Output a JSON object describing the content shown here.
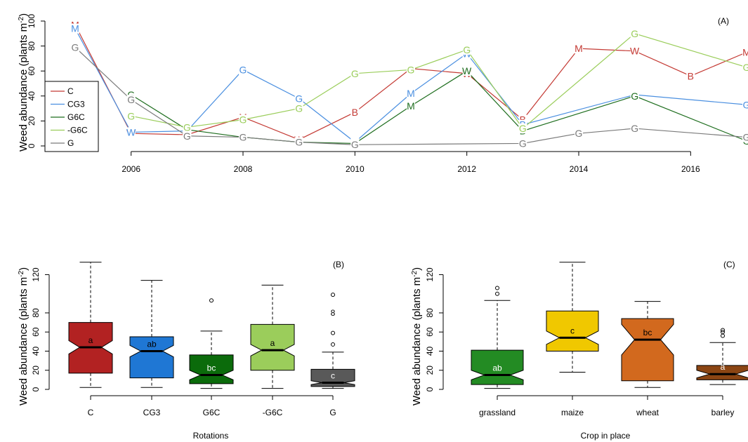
{
  "colors": {
    "C": "#c43a34",
    "CG3": "#4a8fe0",
    "G6C": "#1f6e1f",
    "-G6C": "#9acd5a",
    "G": "#7a7a7a"
  },
  "chart_data": [
    {
      "type": "line",
      "panel_label": "(A)",
      "ylabel": "Weed abundance (plants m^-2)",
      "xlabel": "",
      "xlim": [
        2005,
        2017
      ],
      "ylim": [
        0,
        100
      ],
      "xticks": [
        "2006",
        "2008",
        "2010",
        "2012",
        "2014",
        "2016"
      ],
      "yticks": [
        "0",
        "20",
        "40",
        "60",
        "80",
        "100"
      ],
      "legend": {
        "position": "left",
        "entries": [
          "C",
          "CG3",
          "G6C",
          "-G6C",
          "G"
        ]
      },
      "series": [
        {
          "name": "C",
          "color_key": "C",
          "points": [
            {
              "x": 2005,
              "y": 97,
              "marker": "M"
            },
            {
              "x": 2006,
              "y": 10,
              "marker": "W"
            },
            {
              "x": 2007,
              "y": 9,
              "marker": "G"
            },
            {
              "x": 2008,
              "y": 23,
              "marker": "M"
            },
            {
              "x": 2009,
              "y": 5,
              "marker": "W"
            },
            {
              "x": 2010,
              "y": 27,
              "marker": "B"
            },
            {
              "x": 2011,
              "y": 62,
              "marker": "M"
            },
            {
              "x": 2012,
              "y": 58,
              "marker": "W"
            },
            {
              "x": 2013,
              "y": 21,
              "marker": "B"
            },
            {
              "x": 2014,
              "y": 78,
              "marker": "M"
            },
            {
              "x": 2015,
              "y": 76,
              "marker": "W"
            },
            {
              "x": 2016,
              "y": 56,
              "marker": "B"
            },
            {
              "x": 2017,
              "y": 75,
              "marker": "M"
            }
          ]
        },
        {
          "name": "CG3",
          "color_key": "CG3",
          "points": [
            {
              "x": 2005,
              "y": 94,
              "marker": "M"
            },
            {
              "x": 2006,
              "y": 11,
              "marker": "W"
            },
            {
              "x": 2007,
              "y": 12,
              "marker": "G"
            },
            {
              "x": 2008,
              "y": 61,
              "marker": "G"
            },
            {
              "x": 2009,
              "y": 38,
              "marker": "G"
            },
            {
              "x": 2010,
              "y": 3,
              "marker": "B"
            },
            {
              "x": 2011,
              "y": 42,
              "marker": "M"
            },
            {
              "x": 2012,
              "y": 74,
              "marker": "W"
            },
            {
              "x": 2013,
              "y": 17,
              "marker": "B"
            },
            {
              "x": 2015,
              "y": 41,
              "marker": "G"
            },
            {
              "x": 2017,
              "y": 33,
              "marker": "G"
            }
          ]
        },
        {
          "name": "G6C",
          "color_key": "G6C",
          "points": [
            {
              "x": 2006,
              "y": 41,
              "marker": "G"
            },
            {
              "x": 2007,
              "y": 13,
              "marker": "G"
            },
            {
              "x": 2008,
              "y": 7,
              "marker": "G"
            },
            {
              "x": 2009,
              "y": 3,
              "marker": "G"
            },
            {
              "x": 2010,
              "y": 2,
              "marker": "G"
            },
            {
              "x": 2011,
              "y": 32,
              "marker": "M"
            },
            {
              "x": 2012,
              "y": 60,
              "marker": "W"
            },
            {
              "x": 2013,
              "y": 12,
              "marker": "B"
            },
            {
              "x": 2015,
              "y": 40,
              "marker": "G"
            },
            {
              "x": 2017,
              "y": 4,
              "marker": "G"
            }
          ]
        },
        {
          "name": "-G6C",
          "color_key": "-G6C",
          "points": [
            {
              "x": 2006,
              "y": 24,
              "marker": "G"
            },
            {
              "x": 2007,
              "y": 15,
              "marker": "G"
            },
            {
              "x": 2008,
              "y": 21,
              "marker": "G"
            },
            {
              "x": 2009,
              "y": 30,
              "marker": "G"
            },
            {
              "x": 2010,
              "y": 58,
              "marker": "G"
            },
            {
              "x": 2011,
              "y": 61,
              "marker": "G"
            },
            {
              "x": 2012,
              "y": 77,
              "marker": "G"
            },
            {
              "x": 2013,
              "y": 14,
              "marker": "G"
            },
            {
              "x": 2015,
              "y": 90,
              "marker": "G"
            },
            {
              "x": 2017,
              "y": 63,
              "marker": "G"
            }
          ]
        },
        {
          "name": "G",
          "color_key": "G",
          "points": [
            {
              "x": 2005,
              "y": 79,
              "marker": "G"
            },
            {
              "x": 2006,
              "y": 37,
              "marker": "G"
            },
            {
              "x": 2007,
              "y": 8,
              "marker": "G"
            },
            {
              "x": 2008,
              "y": 7,
              "marker": "G"
            },
            {
              "x": 2009,
              "y": 3,
              "marker": "G"
            },
            {
              "x": 2010,
              "y": 1,
              "marker": "G"
            },
            {
              "x": 2013,
              "y": 2,
              "marker": "G"
            },
            {
              "x": 2014,
              "y": 10,
              "marker": "G"
            },
            {
              "x": 2015,
              "y": 14,
              "marker": "G"
            },
            {
              "x": 2017,
              "y": 7,
              "marker": "G"
            }
          ]
        }
      ]
    },
    {
      "type": "box",
      "panel_label": "(B)",
      "xlabel": "Rotations",
      "ylabel": "Weed abundance (plants m^-2)",
      "ylim": [
        0,
        135
      ],
      "yticks": [
        "0",
        "20",
        "40",
        "60",
        "80",
        "120"
      ],
      "boxes": [
        {
          "category": "C",
          "min": 2,
          "q1": 17,
          "median": 44,
          "q3": 70,
          "max": 133,
          "notch": [
            37,
            51
          ],
          "letter": "a",
          "color": "#b22222",
          "outliers": []
        },
        {
          "category": "CG3",
          "min": 2,
          "q1": 12,
          "median": 40,
          "q3": 55,
          "max": 114,
          "notch": [
            34,
            46
          ],
          "letter": "ab",
          "color": "#1f77d4",
          "outliers": []
        },
        {
          "category": "G6C",
          "min": 1,
          "q1": 6,
          "median": 15,
          "q3": 36,
          "max": 61,
          "notch": [
            10,
            20
          ],
          "letter": "bc",
          "color": "#0b6b0b",
          "outliers": [
            {
              "y": 93
            }
          ]
        },
        {
          "category": "-G6C",
          "min": 1,
          "q1": 20,
          "median": 41,
          "q3": 68,
          "max": 109,
          "notch": [
            35,
            47
          ],
          "letter": "a",
          "color": "#9bcd5b",
          "outliers": []
        },
        {
          "category": "G",
          "min": 1,
          "q1": 3,
          "median": 7,
          "q3": 21,
          "max": 39,
          "notch": [
            5,
            9
          ],
          "letter": "c",
          "color": "#595959",
          "outliers": [
            {
              "y": 47
            },
            {
              "y": 59
            },
            {
              "y": 80,
              "label": "8"
            },
            {
              "y": 99
            }
          ]
        }
      ]
    },
    {
      "type": "box",
      "panel_label": "(C)",
      "xlabel": "Crop in place",
      "ylabel": "Weed abundance (plants m^-2)",
      "ylim": [
        0,
        135
      ],
      "yticks": [
        "0",
        "20",
        "40",
        "60",
        "80",
        "120"
      ],
      "boxes": [
        {
          "category": "grassland",
          "min": 1,
          "q1": 5,
          "median": 15,
          "q3": 41,
          "max": 93,
          "notch": [
            10,
            20
          ],
          "letter": "ab",
          "color": "#238b23",
          "outliers": [
            {
              "y": 100
            },
            {
              "y": 106
            }
          ]
        },
        {
          "category": "maize",
          "min": 18,
          "q1": 40,
          "median": 54,
          "q3": 82,
          "max": 133,
          "notch": [
            47,
            61
          ],
          "letter": "c",
          "color": "#f0c800",
          "outliers": []
        },
        {
          "category": "wheat",
          "min": 2,
          "q1": 9,
          "median": 52,
          "q3": 74,
          "max": 92,
          "notch": [
            36,
            68
          ],
          "letter": "bc",
          "color": "#d2691e",
          "outliers": []
        },
        {
          "category": "barley",
          "min": 5,
          "q1": 10,
          "median": 16,
          "q3": 25,
          "max": 49,
          "notch": [
            12,
            20
          ],
          "letter": "a",
          "color": "#8b4513",
          "outliers": [
            {
              "y": 56
            },
            {
              "y": 60
            },
            {
              "y": 62
            }
          ]
        }
      ]
    }
  ]
}
